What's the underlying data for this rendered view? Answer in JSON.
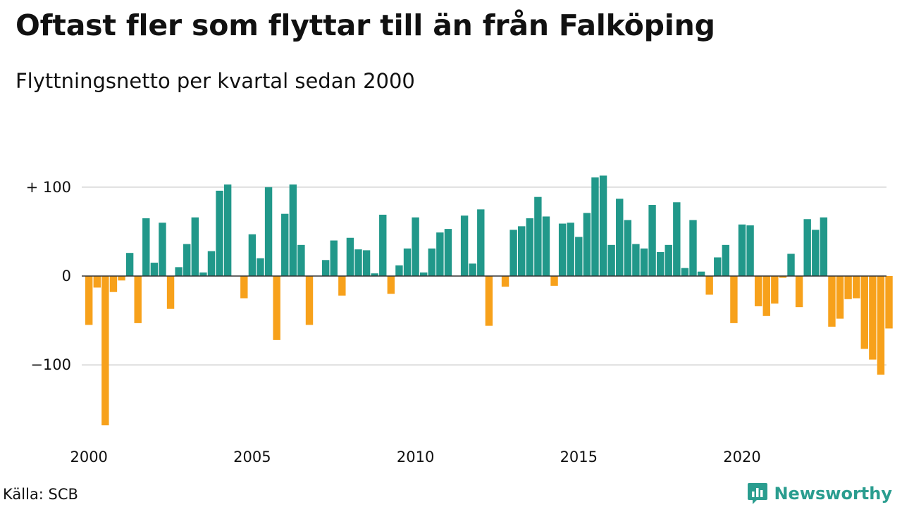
{
  "header": {
    "title": "Oftast fler som flyttar till än från Falköping",
    "subtitle": "Flyttningsnetto per kvartal sedan 2000"
  },
  "footer": {
    "source": "Källa: SCB",
    "brand": "Newsworthy",
    "brand_icon": "bar-chart-logo-icon"
  },
  "colors": {
    "positive": "#21988a",
    "negative": "#f7a11b",
    "grid": "#dddddd",
    "brand": "#2a9d8f"
  },
  "chart_data": {
    "type": "bar",
    "title": "Oftast fler som flyttar till än från Falköping",
    "subtitle": "Flyttningsnetto per kvartal sedan 2000",
    "xlabel": "",
    "ylabel": "",
    "ylim": [
      -175,
      115
    ],
    "grid": true,
    "legend": "none",
    "y_ticks": [
      {
        "value": 100,
        "label": "+ 100"
      },
      {
        "value": 0,
        "label": "0"
      },
      {
        "value": -100,
        "label": "−100"
      }
    ],
    "x_ticks": [
      {
        "index": 0,
        "label": "2000"
      },
      {
        "index": 20,
        "label": "2005"
      },
      {
        "index": 40,
        "label": "2010"
      },
      {
        "index": 60,
        "label": "2015"
      },
      {
        "index": 80,
        "label": "2020"
      }
    ],
    "series": [
      {
        "values": [
          -55,
          -13,
          -168,
          -18,
          -5,
          26,
          -53,
          65,
          15,
          60,
          -37,
          10,
          36,
          66,
          4,
          28,
          96,
          103,
          0,
          -25,
          47,
          20,
          100,
          -72,
          70,
          103,
          35,
          -55,
          0,
          18,
          40,
          -22,
          43,
          30,
          29,
          3,
          69,
          -20,
          12,
          31,
          66,
          4,
          31,
          49,
          53,
          0,
          68,
          14,
          75,
          -56,
          0,
          -12,
          52,
          56,
          65,
          89,
          67,
          -11,
          59,
          60,
          44,
          71,
          111,
          113,
          35,
          87,
          63,
          36,
          31,
          80,
          27,
          35,
          83,
          9,
          63,
          5,
          -21,
          21,
          35,
          -53,
          58,
          57,
          -34,
          -45,
          -31,
          -2,
          25,
          -35,
          64,
          52,
          66,
          -57,
          -48,
          -26,
          -25,
          -82,
          -94,
          -111,
          -59
        ]
      }
    ]
  }
}
